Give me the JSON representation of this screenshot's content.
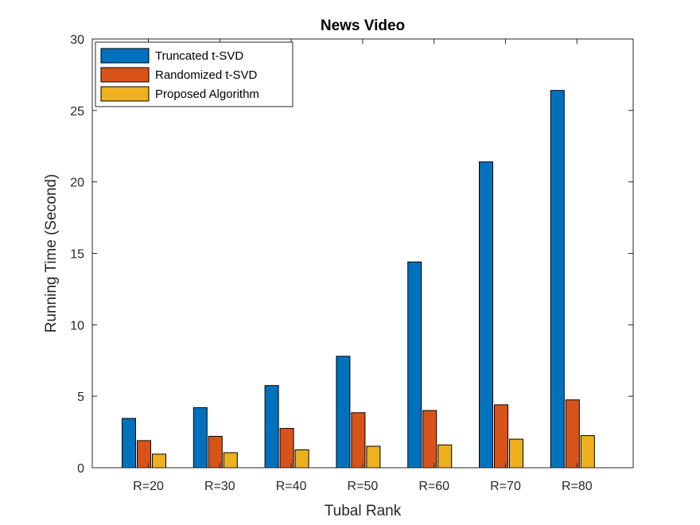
{
  "chart_data": {
    "type": "bar",
    "title": "News Video",
    "xlabel": "Tubal Rank",
    "ylabel": "Running Time (Second)",
    "categories": [
      "R=20",
      "R=30",
      "R=40",
      "R=50",
      "R=60",
      "R=70",
      "R=80"
    ],
    "ylim": [
      0,
      30
    ],
    "yticks": [
      0,
      5,
      10,
      15,
      20,
      25,
      30
    ],
    "grid": false,
    "legend_position": "top-left",
    "series": [
      {
        "name": "Truncated t-SVD",
        "color": "#0072BD",
        "values": [
          3.45,
          4.2,
          5.75,
          7.8,
          14.4,
          21.4,
          26.4
        ]
      },
      {
        "name": "Randomized t-SVD",
        "color": "#D95319",
        "values": [
          1.9,
          2.2,
          2.75,
          3.85,
          4.0,
          4.4,
          4.75
        ]
      },
      {
        "name": "Proposed Algorithm",
        "color": "#EDB120",
        "values": [
          0.95,
          1.05,
          1.25,
          1.5,
          1.6,
          2.0,
          2.25
        ]
      }
    ]
  }
}
